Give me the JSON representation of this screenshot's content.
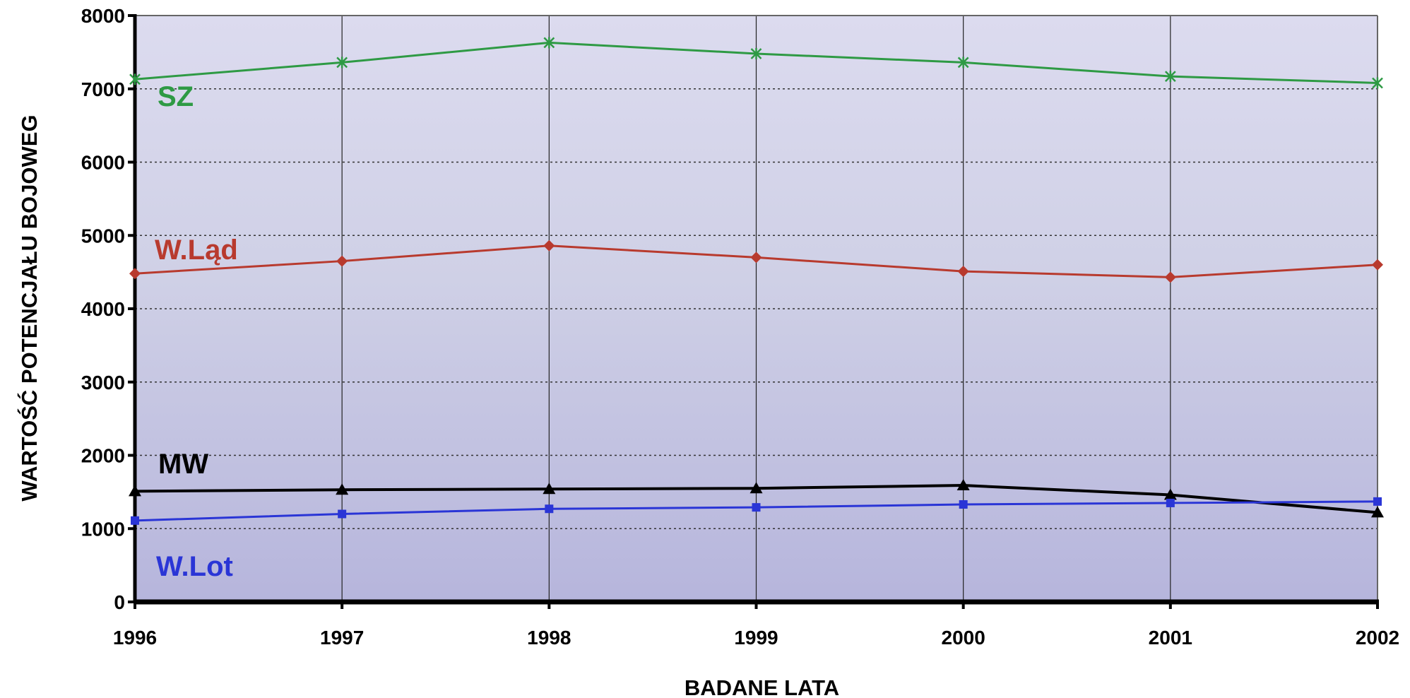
{
  "chart_data": {
    "type": "line",
    "xlabel": "BADANE LATA",
    "ylabel": "WARTOŚĆ POTENCJAŁU BOJOWEG",
    "x": [
      "1996",
      "1997",
      "1998",
      "1999",
      "2000",
      "2001",
      "2002"
    ],
    "ylim": [
      0,
      8000
    ],
    "yticks": [
      0,
      1000,
      2000,
      3000,
      4000,
      5000,
      6000,
      7000,
      8000
    ],
    "grid": {
      "horizontal": "dotted",
      "vertical": "solid"
    },
    "legend": "inline labels at left",
    "series": [
      {
        "name": "SZ",
        "color": "#2e9a44",
        "marker": "star",
        "values": [
          7130,
          7360,
          7630,
          7480,
          7360,
          7170,
          7080
        ]
      },
      {
        "name": "W.Ląd",
        "color": "#b83a2e",
        "marker": "diamond",
        "values": [
          4480,
          4650,
          4860,
          4700,
          4510,
          4430,
          4600
        ]
      },
      {
        "name": "MW",
        "color": "#000000",
        "marker": "triangle",
        "values": [
          1510,
          1530,
          1540,
          1550,
          1590,
          1460,
          1220
        ]
      },
      {
        "name": "W.Lot",
        "color": "#2a35d6",
        "marker": "square",
        "values": [
          1110,
          1200,
          1270,
          1290,
          1330,
          1350,
          1370
        ]
      }
    ]
  }
}
